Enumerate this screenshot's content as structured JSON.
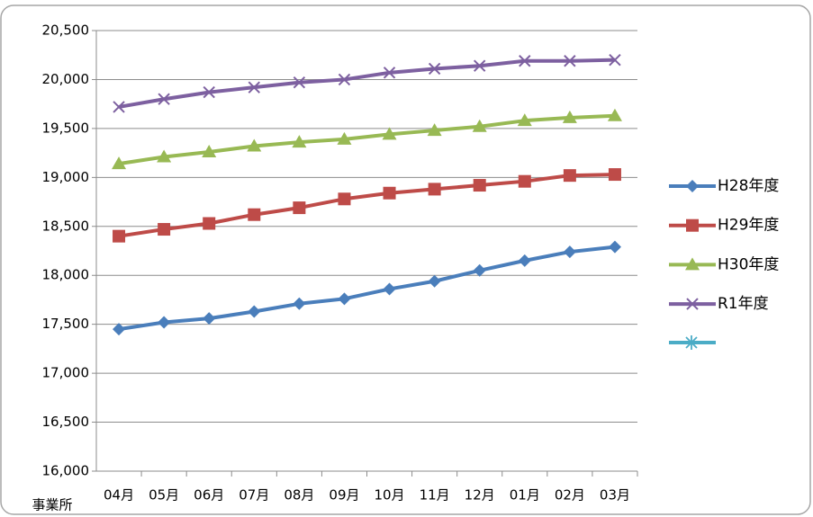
{
  "chart_data": {
    "type": "line",
    "axis_label": "事業所",
    "categories": [
      "04月",
      "05月",
      "06月",
      "07月",
      "08月",
      "09月",
      "10月",
      "11月",
      "12月",
      "01月",
      "02月",
      "03月"
    ],
    "series": [
      {
        "name": "H28年度",
        "color": "#4a7ebb",
        "marker": "diamond",
        "values": [
          17450,
          17520,
          17560,
          17630,
          17710,
          17760,
          17860,
          17940,
          18050,
          18150,
          18240,
          18290
        ]
      },
      {
        "name": "H29年度",
        "color": "#be4b48",
        "marker": "square",
        "values": [
          18400,
          18470,
          18530,
          18620,
          18690,
          18780,
          18840,
          18880,
          18920,
          18960,
          19020,
          19030
        ]
      },
      {
        "name": "H30年度",
        "color": "#98b954",
        "marker": "triangle",
        "values": [
          19140,
          19210,
          19260,
          19320,
          19360,
          19390,
          19440,
          19480,
          19520,
          19580,
          19610,
          19630
        ]
      },
      {
        "name": "R1年度",
        "color": "#7d60a0",
        "marker": "x",
        "values": [
          19720,
          19800,
          19870,
          19920,
          19970,
          20000,
          20070,
          20110,
          20140,
          20190,
          20190,
          20200
        ]
      }
    ],
    "ylim": [
      16000,
      20500
    ],
    "yticks": [
      {
        "value": 16000,
        "label": "16,000"
      },
      {
        "value": 16500,
        "label": "16,500"
      },
      {
        "value": 17000,
        "label": "17,000"
      },
      {
        "value": 17500,
        "label": "17,500"
      },
      {
        "value": 18000,
        "label": "18,000"
      },
      {
        "value": 18500,
        "label": "18,500"
      },
      {
        "value": 19000,
        "label": "19,000"
      },
      {
        "value": 19500,
        "label": "19,500"
      },
      {
        "value": 20000,
        "label": "20,000"
      },
      {
        "value": 20500,
        "label": "20,500"
      }
    ],
    "grid": true
  }
}
